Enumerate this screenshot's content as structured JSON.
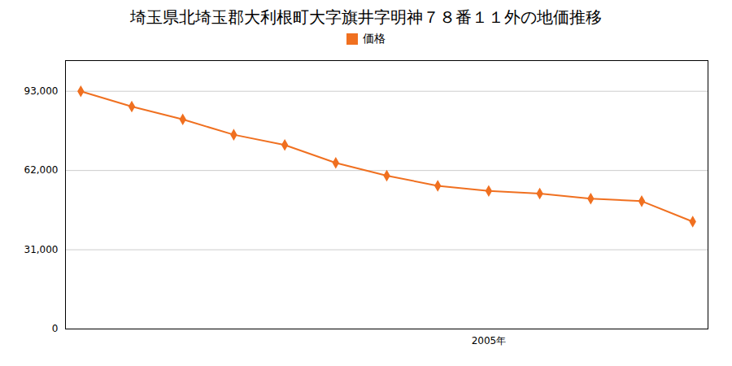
{
  "chart_data": {
    "type": "line",
    "title": "埼玉県北埼玉郡大利根町大字旗井字明神７８番１１外の地価推移",
    "x": [
      1997,
      1998,
      1999,
      2000,
      2001,
      2002,
      2003,
      2004,
      2005,
      2006,
      2007,
      2008,
      2009
    ],
    "series": [
      {
        "name": "価格",
        "color": "#f07020",
        "marker": "diamond",
        "values": [
          93000,
          87000,
          82000,
          76000,
          72000,
          65000,
          60000,
          56000,
          54000,
          53000,
          51000,
          50000,
          42000
        ]
      }
    ],
    "xlim": [
      1996.7,
      2009.3
    ],
    "xticks": [
      {
        "value": 2005,
        "label": "2005年"
      }
    ],
    "ylim": [
      0,
      105000
    ],
    "yticks": [
      0,
      {
        "value": 31000,
        "label": "31,000"
      },
      {
        "value": 62000,
        "label": "62,000"
      },
      {
        "value": 93000,
        "label": "93,000"
      }
    ],
    "grid": true,
    "legend": "top"
  }
}
